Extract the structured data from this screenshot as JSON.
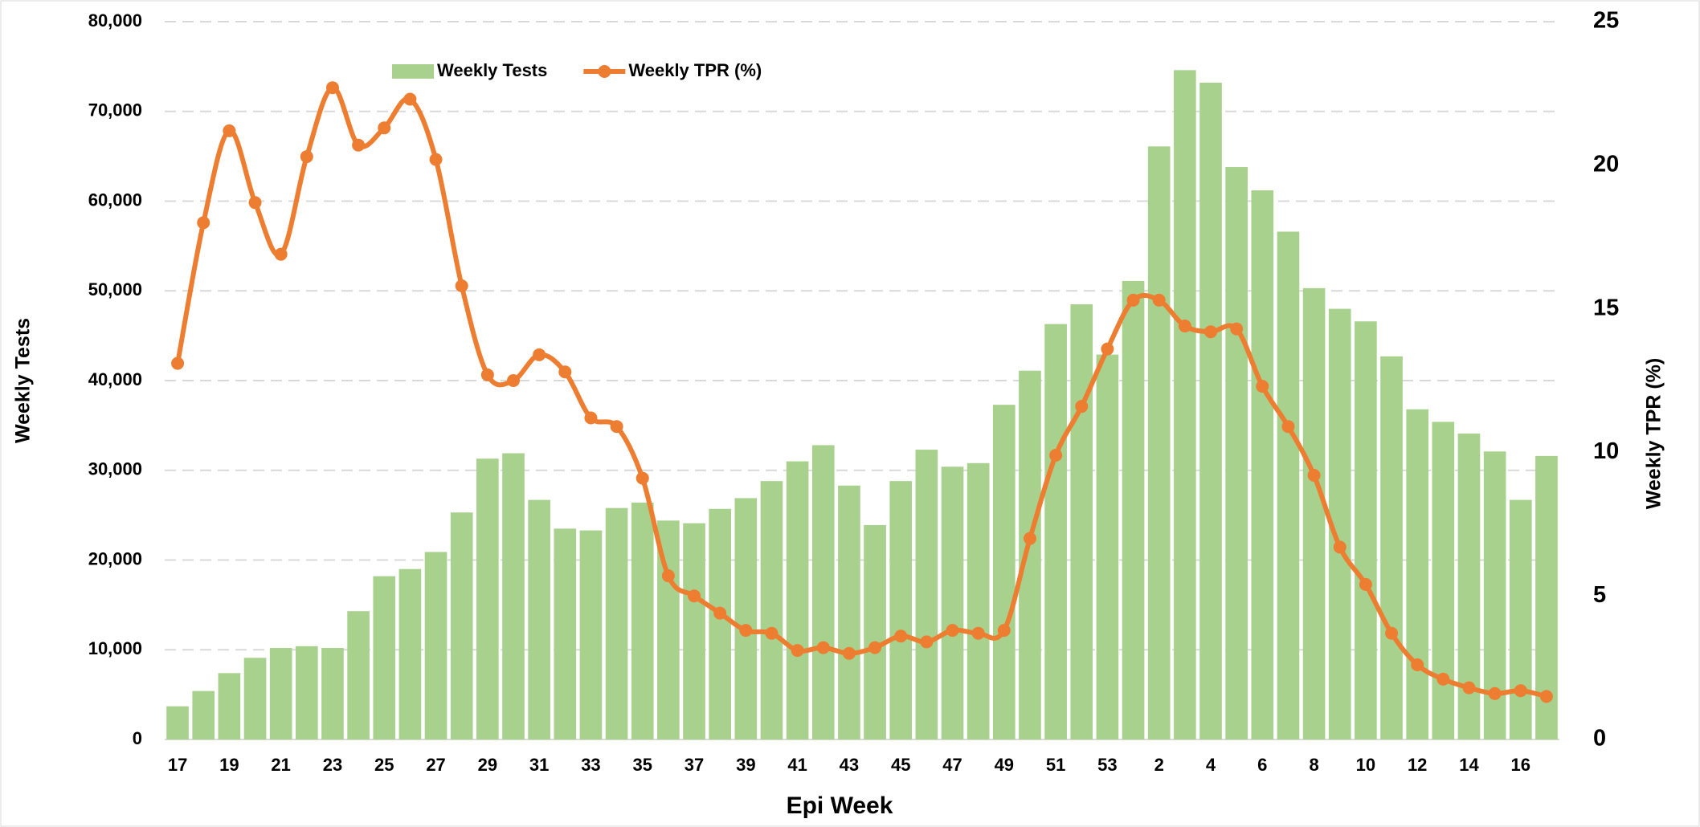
{
  "chart_data": {
    "type": "bar",
    "x_label": "Epi Week",
    "y_label": "Weekly Tests",
    "y2_label": "Weekly TPR (%)",
    "categories": [
      "17",
      null,
      "19",
      null,
      "21",
      null,
      "23",
      null,
      "25",
      null,
      "27",
      null,
      "29",
      null,
      "31",
      null,
      "33",
      null,
      "35",
      null,
      "37",
      null,
      "39",
      null,
      "41",
      null,
      "43",
      null,
      "45",
      null,
      "47",
      null,
      "49",
      null,
      "51",
      null,
      "53",
      null,
      "2",
      null,
      "4",
      null,
      "6",
      null,
      "8",
      null,
      "10",
      null,
      "12",
      null,
      "14",
      null,
      "16",
      null
    ],
    "series": [
      {
        "name": "Weekly Tests",
        "type": "bar",
        "color": "#a9d18e",
        "values": [
          3700,
          5400,
          7400,
          9100,
          10200,
          10400,
          10200,
          14300,
          18200,
          19000,
          20900,
          25300,
          31300,
          31900,
          26700,
          23500,
          23300,
          25800,
          26400,
          24400,
          24100,
          25700,
          26900,
          28800,
          31000,
          32800,
          28300,
          23900,
          28800,
          32300,
          30400,
          30800,
          37300,
          41100,
          46300,
          48500,
          42900,
          51100,
          66100,
          74600,
          73200,
          63800,
          61200,
          56600,
          50300,
          48000,
          46600,
          42700,
          36800,
          35400,
          34100,
          32100,
          26700,
          31600
        ]
      },
      {
        "name": "Weekly TPR (%)",
        "type": "line",
        "axis": "y2",
        "color": "#ed7d31",
        "values": [
          13.1,
          18.0,
          21.2,
          18.7,
          16.9,
          20.3,
          22.7,
          20.7,
          21.3,
          22.3,
          20.2,
          15.8,
          12.7,
          12.5,
          13.4,
          12.8,
          11.2,
          10.9,
          9.1,
          5.7,
          5.0,
          4.4,
          3.8,
          3.7,
          3.1,
          3.2,
          3.0,
          3.2,
          3.6,
          3.4,
          3.8,
          3.7,
          3.8,
          7.0,
          9.9,
          11.6,
          13.6,
          15.3,
          15.3,
          14.4,
          14.2,
          14.3,
          12.3,
          10.9,
          9.2,
          6.7,
          5.4,
          3.7,
          2.6,
          2.1,
          1.8,
          1.6,
          1.7,
          1.5
        ]
      }
    ],
    "ylim": [
      0,
      80000
    ],
    "yticks": [
      0,
      {
        "value": 10000,
        "label": "10,000"
      },
      {
        "value": 20000,
        "label": "20,000"
      },
      {
        "value": 30000,
        "label": "30,000"
      },
      {
        "value": 40000,
        "label": "40,000"
      },
      {
        "value": 50000,
        "label": "50,000"
      },
      {
        "value": 60000,
        "label": "60,000"
      },
      {
        "value": 70000,
        "label": "70,000"
      },
      {
        "value": 80000,
        "label": "80,000"
      }
    ],
    "y2lim": [
      0,
      25
    ],
    "y2ticks": [
      0,
      5,
      10,
      15,
      20,
      25
    ],
    "y2_color": "#c00000",
    "grid": true,
    "legend": "top"
  }
}
